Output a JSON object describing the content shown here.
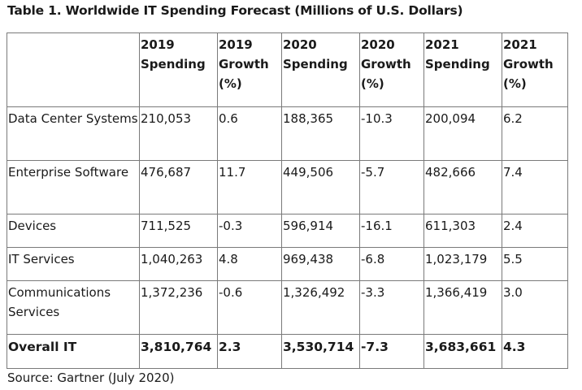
{
  "title": "Table 1. Worldwide IT Spending Forecast (Millions of U.S. Dollars)",
  "columns": [
    "",
    "2019 Spending",
    "2019 Growth (%)",
    "2020 Spending",
    "2020 Growth (%)",
    "2021 Spending",
    "2021 Growth (%)"
  ],
  "rows": [
    {
      "label": "Data Center Systems",
      "cells": [
        "210,053",
        "0.6",
        "188,365",
        "-10.3",
        "200,094",
        "6.2"
      ]
    },
    {
      "label": "Enterprise Software",
      "cells": [
        "476,687",
        "11.7",
        "449,506",
        "-5.7",
        "482,666",
        "7.4"
      ]
    },
    {
      "label": "Devices",
      "cells": [
        "711,525",
        "-0.3",
        "596,914",
        "-16.1",
        "611,303",
        "2.4"
      ]
    },
    {
      "label": "IT Services",
      "cells": [
        "1,040,263",
        "4.8",
        "969,438",
        "-6.8",
        "1,023,179",
        "5.5"
      ]
    },
    {
      "label": "Communications Services",
      "cells": [
        "1,372,236",
        "-0.6",
        "1,326,492",
        "-3.3",
        "1,366,419",
        "3.0"
      ]
    },
    {
      "label": "Overall IT",
      "cells": [
        "3,810,764",
        "2.3",
        "3,530,714",
        "-7.3",
        "3,683,661",
        "4.3"
      ]
    }
  ],
  "source": "Source: Gartner (July 2020)"
}
